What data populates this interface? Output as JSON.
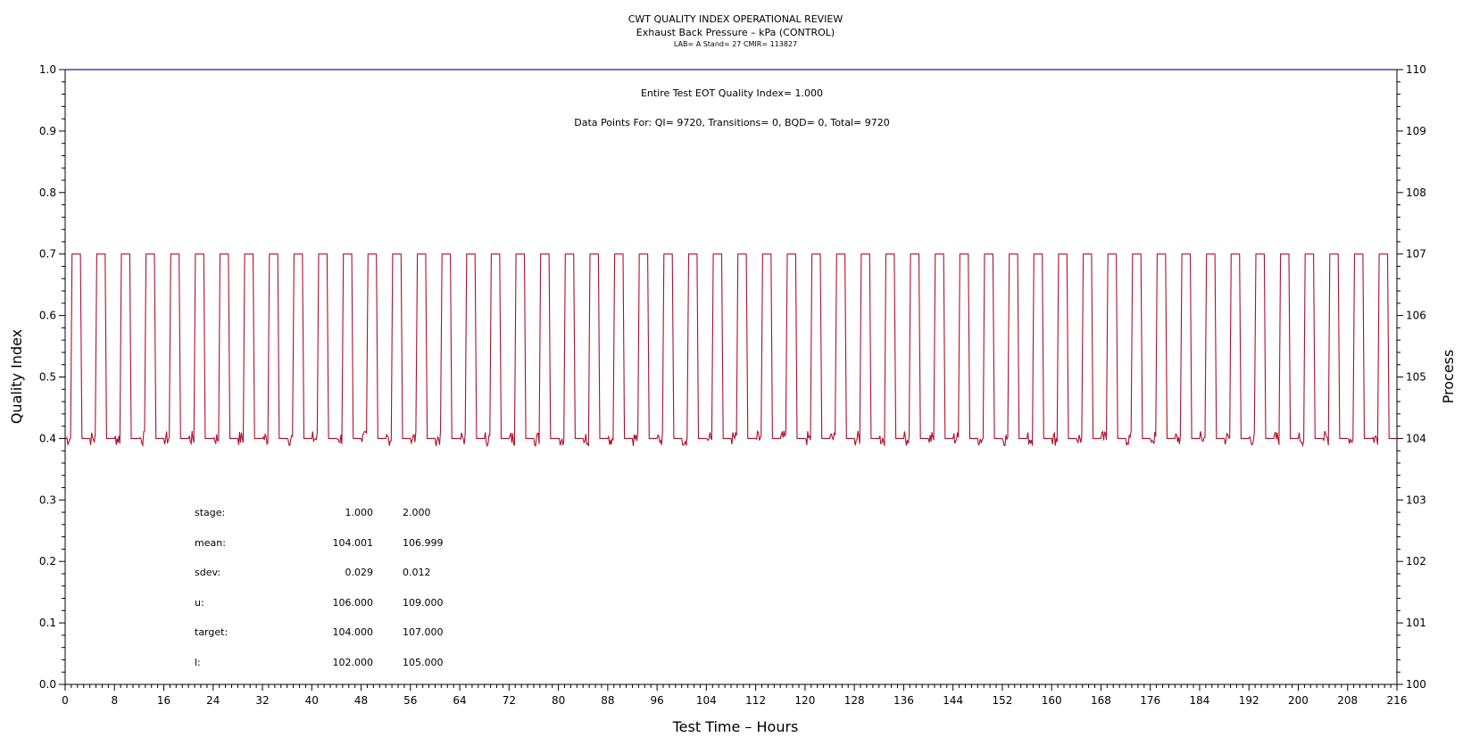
{
  "colors": {
    "quality_index": "#1a1aa0",
    "process": "#b0102a",
    "axis": "#000000"
  },
  "chart_data": {
    "type": "line",
    "title": "CWT QUALITY INDEX OPERATIONAL REVIEW",
    "subtitle": "Exhaust Back Pressure – kPa (CONTROL)",
    "subtitle2": "LAB= A Stand= 27 CMIR= 113827",
    "xlabel": "Test Time – Hours",
    "ylabel_left": "Quality Index",
    "ylabel_right": "Process",
    "xlim": [
      0,
      216
    ],
    "ylim_left": [
      0,
      1
    ],
    "ylim_right": [
      100,
      110
    ],
    "x_ticks": [
      "0",
      "8",
      "16",
      "24",
      "32",
      "40",
      "48",
      "56",
      "64",
      "72",
      "80",
      "88",
      "96",
      "104",
      "112",
      "120",
      "128",
      "136",
      "144",
      "152",
      "160",
      "168",
      "176",
      "184",
      "192",
      "200",
      "208",
      "216"
    ],
    "y_left_ticks": [
      "0.0",
      "0.1",
      "0.2",
      "0.3",
      "0.4",
      "0.5",
      "0.6",
      "0.7",
      "0.8",
      "0.9",
      "1.0"
    ],
    "y_right_ticks": [
      "100",
      "101",
      "102",
      "103",
      "104",
      "105",
      "106",
      "107",
      "108",
      "109",
      "110"
    ],
    "annotation_qi": "Entire Test EOT Quality Index=  1.000",
    "annotation_points": "Data Points For: QI=  9720, Transitions=     0, BQD=     0, Total=  9720",
    "series": [
      {
        "axis": "left",
        "description": "quality index, constant near 1.0 over the test",
        "x": [
          0,
          216
        ],
        "y": [
          1.0,
          1.0
        ]
      },
      {
        "axis": "right",
        "description": "process (exhaust back pressure) cycling between 104 and 107 kPa",
        "low": 104.0,
        "high": 107.0,
        "x_start": 0,
        "x_end": 216,
        "cycle_hours": 4.0,
        "high_fraction": 0.34
      }
    ],
    "stats_table": {
      "rows": [
        {
          "label": "stage:",
          "v1": "1.000",
          "v2": "2.000"
        },
        {
          "label": "mean:",
          "v1": "104.001",
          "v2": "106.999"
        },
        {
          "label": "sdev:",
          "v1": "0.029",
          "v2": "0.012"
        },
        {
          "label": "u:",
          "v1": "106.000",
          "v2": "109.000"
        },
        {
          "label": "target:",
          "v1": "104.000",
          "v2": "107.000"
        },
        {
          "label": "l:",
          "v1": "102.000",
          "v2": "105.000"
        }
      ]
    }
  }
}
